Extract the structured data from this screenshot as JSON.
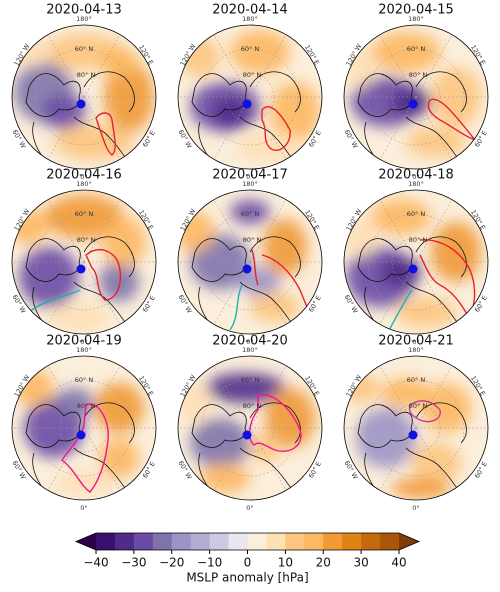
{
  "panels": [
    {
      "title": "2020-04-13"
    },
    {
      "title": "2020-04-14"
    },
    {
      "title": "2020-04-15"
    },
    {
      "title": "2020-04-16"
    },
    {
      "title": "2020-04-17"
    },
    {
      "title": "2020-04-18"
    },
    {
      "title": "2020-04-19"
    },
    {
      "title": "2020-04-20"
    },
    {
      "title": "2020-04-21"
    }
  ],
  "graticule_labels": [
    "180°",
    "60° N",
    "80° N",
    "120° E",
    "60° E",
    "0°",
    "60° W",
    "120° W"
  ],
  "colorbar": {
    "label": "MSLP anomaly [hPa]",
    "lim": [
      -40,
      40
    ],
    "ticks": [
      {
        "value": -40,
        "label": "−40"
      },
      {
        "value": -30,
        "label": "−30"
      },
      {
        "value": -20,
        "label": "−20"
      },
      {
        "value": -10,
        "label": "−10"
      },
      0,
      10,
      20,
      30,
      40
    ],
    "colors": [
      "#3b0f70",
      "#4f2b8a",
      "#6a4ba5",
      "#8073ac",
      "#9c94c6",
      "#b2abd2",
      "#cdc8e4",
      "#e9e6f2",
      "#fbeedb",
      "#fee0b6",
      "#fdc57f",
      "#fdb863",
      "#f19a36",
      "#e08214",
      "#c46a0d",
      "#a8560a"
    ],
    "extend_colors": [
      "#2d004b",
      "#7f3b08"
    ]
  }
}
